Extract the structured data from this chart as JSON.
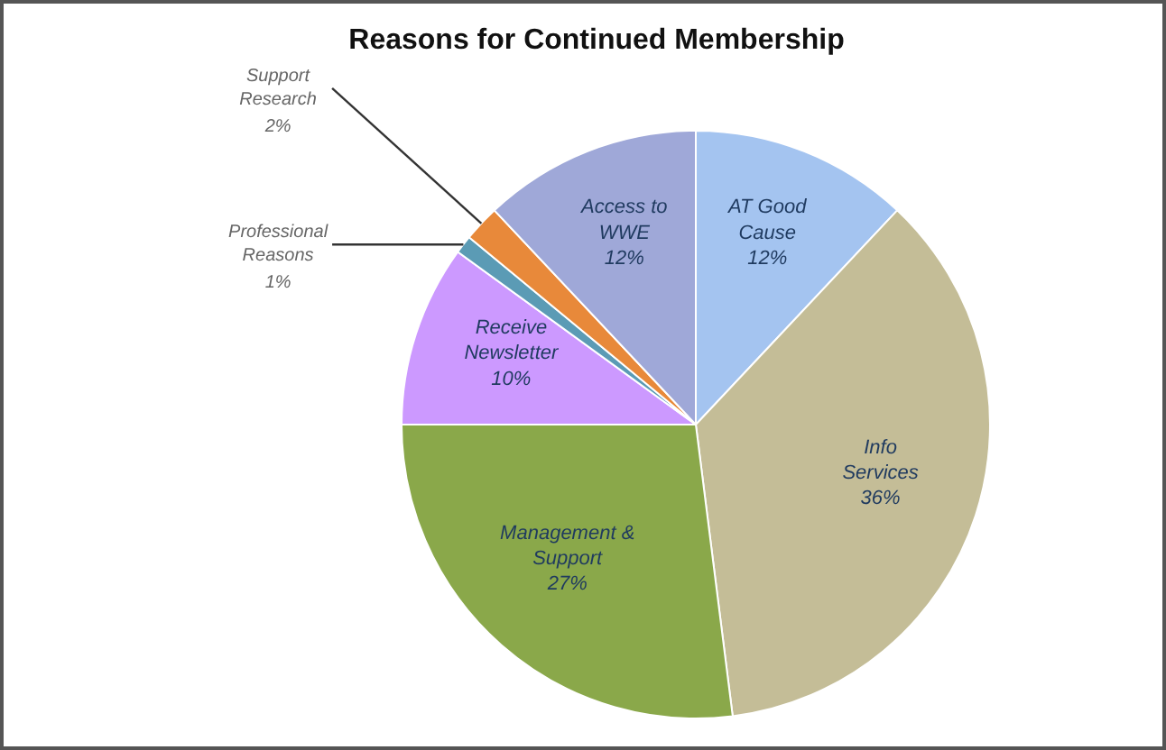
{
  "chart_data": {
    "type": "pie",
    "title": "Reasons for Continued Membership",
    "categories": [
      "AT Good Cause",
      "Info Services",
      "Management & Support",
      "Receive Newsletter",
      "Professional Reasons",
      "Support Research",
      "Access to WWE"
    ],
    "values": [
      12,
      36,
      27,
      10,
      1,
      2,
      12
    ],
    "colors": [
      "#a4c4f0",
      "#c4bd97",
      "#8aa84a",
      "#cc99ff",
      "#5b9bb5",
      "#e8893a",
      "#9fa8d8"
    ],
    "value_labels": [
      "12%",
      "36%",
      "27%",
      "10%",
      "1%",
      "2%",
      "12%"
    ]
  }
}
